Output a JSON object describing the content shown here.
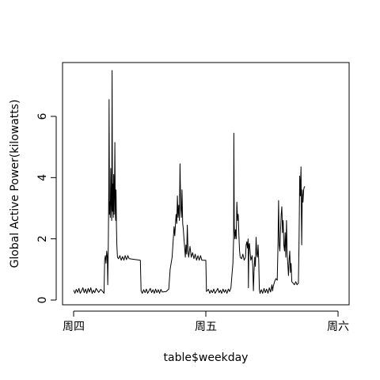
{
  "chart_data": {
    "type": "line",
    "title": "",
    "xlabel": "table$weekday",
    "ylabel": "Global Active Power(kilowatts)",
    "ylim": [
      0,
      7.6
    ],
    "yticks": [
      0,
      2,
      4,
      6
    ],
    "xlim_days": [
      0,
      2
    ],
    "xticks": [
      {
        "day": 0,
        "label": "周四"
      },
      {
        "day": 1,
        "label": "周五"
      },
      {
        "day": 2,
        "label": "周六"
      }
    ],
    "grid": false,
    "series": [
      {
        "color": "#000000",
        "points": [
          [
            0.0,
            0.32
          ],
          [
            0.01,
            0.22
          ],
          [
            0.02,
            0.35
          ],
          [
            0.03,
            0.25
          ],
          [
            0.04,
            0.38
          ],
          [
            0.05,
            0.22
          ],
          [
            0.06,
            0.3
          ],
          [
            0.07,
            0.4
          ],
          [
            0.08,
            0.24
          ],
          [
            0.09,
            0.36
          ],
          [
            0.1,
            0.22
          ],
          [
            0.11,
            0.38
          ],
          [
            0.12,
            0.26
          ],
          [
            0.13,
            0.4
          ],
          [
            0.14,
            0.22
          ],
          [
            0.15,
            0.32
          ],
          [
            0.16,
            0.24
          ],
          [
            0.17,
            0.38
          ],
          [
            0.19,
            0.25
          ],
          [
            0.205,
            0.35
          ],
          [
            0.22,
            0.28
          ],
          [
            0.23,
            0.22
          ],
          [
            0.235,
            1.3
          ],
          [
            0.24,
            1.45
          ],
          [
            0.245,
            1.2
          ],
          [
            0.25,
            1.6
          ],
          [
            0.255,
            1.4
          ],
          [
            0.258,
            0.5
          ],
          [
            0.262,
            1.8
          ],
          [
            0.266,
            3.6
          ],
          [
            0.268,
            6.55
          ],
          [
            0.271,
            2.8
          ],
          [
            0.274,
            3.2
          ],
          [
            0.277,
            2.7
          ],
          [
            0.281,
            4.3
          ],
          [
            0.284,
            3.2
          ],
          [
            0.288,
            2.6
          ],
          [
            0.291,
            7.5
          ],
          [
            0.294,
            2.9
          ],
          [
            0.297,
            3.8
          ],
          [
            0.3,
            2.7
          ],
          [
            0.303,
            4.1
          ],
          [
            0.306,
            2.8
          ],
          [
            0.309,
            3.5
          ],
          [
            0.312,
            5.15
          ],
          [
            0.315,
            2.9
          ],
          [
            0.318,
            2.6
          ],
          [
            0.321,
            3.6
          ],
          [
            0.324,
            2.4
          ],
          [
            0.327,
            1.8
          ],
          [
            0.332,
            1.4
          ],
          [
            0.34,
            1.35
          ],
          [
            0.35,
            1.45
          ],
          [
            0.36,
            1.3
          ],
          [
            0.37,
            1.42
          ],
          [
            0.38,
            1.3
          ],
          [
            0.39,
            1.45
          ],
          [
            0.4,
            1.32
          ],
          [
            0.41,
            1.45
          ],
          [
            0.42,
            1.35
          ],
          [
            0.505,
            1.3
          ],
          [
            0.51,
            0.3
          ],
          [
            0.52,
            0.22
          ],
          [
            0.53,
            0.34
          ],
          [
            0.54,
            0.24
          ],
          [
            0.55,
            0.36
          ],
          [
            0.56,
            0.22
          ],
          [
            0.57,
            0.3
          ],
          [
            0.58,
            0.38
          ],
          [
            0.59,
            0.24
          ],
          [
            0.6,
            0.34
          ],
          [
            0.61,
            0.22
          ],
          [
            0.62,
            0.36
          ],
          [
            0.63,
            0.24
          ],
          [
            0.64,
            0.34
          ],
          [
            0.65,
            0.22
          ],
          [
            0.66,
            0.35
          ],
          [
            0.67,
            0.26
          ],
          [
            0.7,
            0.28
          ],
          [
            0.72,
            0.36
          ],
          [
            0.73,
            1.0
          ],
          [
            0.745,
            1.4
          ],
          [
            0.76,
            2.4
          ],
          [
            0.765,
            2.1
          ],
          [
            0.775,
            2.8
          ],
          [
            0.78,
            2.5
          ],
          [
            0.785,
            3.4
          ],
          [
            0.79,
            2.7
          ],
          [
            0.795,
            3.1
          ],
          [
            0.8,
            2.6
          ],
          [
            0.805,
            4.45
          ],
          [
            0.81,
            3.0
          ],
          [
            0.815,
            2.7
          ],
          [
            0.82,
            3.6
          ],
          [
            0.825,
            2.5
          ],
          [
            0.83,
            2.3
          ],
          [
            0.835,
            2.0
          ],
          [
            0.84,
            1.7
          ],
          [
            0.845,
            1.4
          ],
          [
            0.85,
            1.8
          ],
          [
            0.855,
            1.5
          ],
          [
            0.86,
            2.45
          ],
          [
            0.865,
            1.6
          ],
          [
            0.87,
            1.4
          ],
          [
            0.88,
            1.75
          ],
          [
            0.89,
            1.4
          ],
          [
            0.9,
            1.55
          ],
          [
            0.91,
            1.35
          ],
          [
            0.92,
            1.5
          ],
          [
            0.93,
            1.3
          ],
          [
            0.94,
            1.45
          ],
          [
            0.95,
            1.3
          ],
          [
            0.96,
            1.45
          ],
          [
            0.97,
            1.3
          ],
          [
            1.0,
            1.3
          ],
          [
            1.005,
            0.28
          ],
          [
            1.02,
            0.35
          ],
          [
            1.03,
            0.22
          ],
          [
            1.04,
            0.32
          ],
          [
            1.05,
            0.24
          ],
          [
            1.06,
            0.36
          ],
          [
            1.07,
            0.22
          ],
          [
            1.08,
            0.3
          ],
          [
            1.09,
            0.38
          ],
          [
            1.1,
            0.24
          ],
          [
            1.11,
            0.32
          ],
          [
            1.12,
            0.22
          ],
          [
            1.13,
            0.36
          ],
          [
            1.14,
            0.25
          ],
          [
            1.15,
            0.34
          ],
          [
            1.16,
            0.22
          ],
          [
            1.17,
            0.36
          ],
          [
            1.18,
            0.28
          ],
          [
            1.19,
            0.4
          ],
          [
            1.205,
            1.2
          ],
          [
            1.21,
            2.0
          ],
          [
            1.212,
            5.45
          ],
          [
            1.215,
            2.4
          ],
          [
            1.22,
            2.0
          ],
          [
            1.225,
            2.3
          ],
          [
            1.23,
            2.0
          ],
          [
            1.235,
            3.2
          ],
          [
            1.24,
            2.6
          ],
          [
            1.245,
            2.8
          ],
          [
            1.25,
            2.1
          ],
          [
            1.255,
            1.6
          ],
          [
            1.26,
            1.4
          ],
          [
            1.27,
            1.35
          ],
          [
            1.28,
            1.5
          ],
          [
            1.29,
            1.3
          ],
          [
            1.3,
            1.4
          ],
          [
            1.305,
            1.8
          ],
          [
            1.31,
            1.9
          ],
          [
            1.315,
            1.7
          ],
          [
            1.32,
            2.0
          ],
          [
            1.322,
            0.4
          ],
          [
            1.326,
            1.8
          ],
          [
            1.33,
            1.85
          ],
          [
            1.34,
            1.3
          ],
          [
            1.35,
            1.45
          ],
          [
            1.355,
            1.1
          ],
          [
            1.36,
            0.3
          ],
          [
            1.365,
            1.0
          ],
          [
            1.37,
            1.4
          ],
          [
            1.375,
            1.1
          ],
          [
            1.38,
            2.05
          ],
          [
            1.385,
            1.5
          ],
          [
            1.39,
            1.4
          ],
          [
            1.395,
            1.8
          ],
          [
            1.4,
            1.3
          ],
          [
            1.405,
            0.35
          ],
          [
            1.41,
            0.22
          ],
          [
            1.42,
            0.34
          ],
          [
            1.43,
            0.22
          ],
          [
            1.44,
            0.38
          ],
          [
            1.45,
            0.24
          ],
          [
            1.46,
            0.36
          ],
          [
            1.47,
            0.22
          ],
          [
            1.48,
            0.4
          ],
          [
            1.49,
            0.26
          ],
          [
            1.5,
            0.5
          ],
          [
            1.505,
            0.3
          ],
          [
            1.51,
            0.45
          ],
          [
            1.52,
            0.6
          ],
          [
            1.53,
            0.7
          ],
          [
            1.54,
            0.65
          ],
          [
            1.545,
            1.6
          ],
          [
            1.55,
            3.25
          ],
          [
            1.555,
            1.8
          ],
          [
            1.56,
            1.6
          ],
          [
            1.565,
            2.3
          ],
          [
            1.57,
            2.8
          ],
          [
            1.575,
            3.05
          ],
          [
            1.58,
            2.2
          ],
          [
            1.585,
            2.6
          ],
          [
            1.59,
            1.8
          ],
          [
            1.595,
            1.6
          ],
          [
            1.6,
            2.2
          ],
          [
            1.605,
            1.4
          ],
          [
            1.61,
            2.6
          ],
          [
            1.615,
            1.5
          ],
          [
            1.62,
            1.2
          ],
          [
            1.625,
            0.8
          ],
          [
            1.63,
            1.3
          ],
          [
            1.635,
            1.6
          ],
          [
            1.64,
            0.9
          ],
          [
            1.645,
            1.2
          ],
          [
            1.65,
            0.6
          ],
          [
            1.66,
            0.55
          ],
          [
            1.67,
            0.5
          ],
          [
            1.68,
            0.6
          ],
          [
            1.69,
            0.5
          ],
          [
            1.7,
            0.55
          ],
          [
            1.705,
            1.8
          ],
          [
            1.71,
            4.05
          ],
          [
            1.715,
            3.4
          ],
          [
            1.72,
            4.35
          ],
          [
            1.725,
            1.8
          ],
          [
            1.73,
            3.6
          ],
          [
            1.735,
            3.2
          ],
          [
            1.74,
            3.6
          ],
          [
            1.745,
            3.7
          ],
          [
            1.75,
            3.7
          ]
        ]
      }
    ]
  }
}
